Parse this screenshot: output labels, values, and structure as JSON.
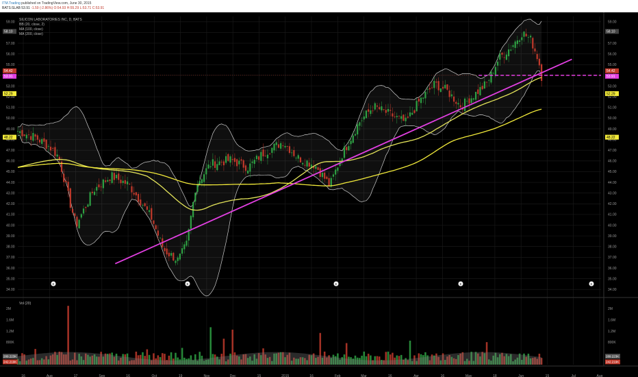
{
  "header": {
    "publisher": "ITM.Trading",
    "published_text": "published on TradingView.com, June 30, 2015",
    "symbol": "BATS:SLAB",
    "last": "53.91",
    "change": "-1.59 (-2.86%)",
    "open": "O:54.93",
    "high": "H:55.29",
    "low": "L:53.71",
    "close": "C:53.91"
  },
  "legend": {
    "title": "SILICON LABORATORIES INC, D, BATS",
    "bb": "BB (20, close, 2)",
    "ma100": "MA (100, close)",
    "ma200": "MA (200, close)",
    "vol": "Vol (20)"
  },
  "colors": {
    "up": "#2ea043",
    "down": "#c0392b",
    "trendline": "#e23fe2",
    "ma100": "#e4e45a",
    "ma200": "#f2ea3a",
    "bb": "#cfcfcf",
    "bg": "#000000",
    "grid": "#1c1c1c"
  },
  "chart_data": {
    "type": "candlestick",
    "price_axis": {
      "ticks": [
        "34.00",
        "35.00",
        "36.00",
        "37.00",
        "38.00",
        "39.00",
        "40.00",
        "41.00",
        "42.00",
        "43.00",
        "44.00",
        "45.00",
        "46.00",
        "47.00",
        "48.00",
        "49.00",
        "50.00",
        "51.00",
        "52.00",
        "53.00",
        "54.00",
        "55.00",
        "56.00",
        "57.00",
        "58.00",
        "59.00"
      ],
      "range": [
        33.5,
        59.5
      ]
    },
    "price_labels": {
      "top": "58.10",
      "last_price": "53.91",
      "resistance": "54.42",
      "ma100": "52.29",
      "ma200": "48.22"
    },
    "volume_axis": {
      "ticks": [
        "800K",
        "1.2M",
        "1.6M",
        "2M"
      ],
      "range": [
        0,
        2.3
      ],
      "labels": {
        "vol_avg": "289.223K",
        "vol_last": "242.219K"
      }
    },
    "time_axis": [
      "16",
      "Aug",
      "17",
      "Sep",
      "16",
      "Oct",
      "19",
      "Nov",
      "Dec",
      "15",
      "2015",
      "16",
      "Feb",
      "Mar",
      "16",
      "Apr",
      "16",
      "May",
      "18",
      "Jun",
      "15",
      "Jul",
      "Aug"
    ],
    "events": [
      "E",
      "E",
      "E",
      "E",
      "E"
    ],
    "support_level": 54.0,
    "trendline": {
      "from": [
        0.167,
        36.4
      ],
      "to": [
        0.95,
        55.5
      ]
    },
    "anchors": [
      [
        0.0,
        48.8
      ],
      [
        0.03,
        48.2
      ],
      [
        0.055,
        47.3
      ],
      [
        0.07,
        46.4
      ],
      [
        0.09,
        42.0
      ],
      [
        0.1,
        40.0
      ],
      [
        0.13,
        43.3
      ],
      [
        0.16,
        44.6
      ],
      [
        0.19,
        43.8
      ],
      [
        0.21,
        42.3
      ],
      [
        0.23,
        40.6
      ],
      [
        0.25,
        37.7
      ],
      [
        0.275,
        36.7
      ],
      [
        0.29,
        38.3
      ],
      [
        0.305,
        43.7
      ],
      [
        0.33,
        45.7
      ],
      [
        0.365,
        46.1
      ],
      [
        0.395,
        45.4
      ],
      [
        0.42,
        46.7
      ],
      [
        0.455,
        47.8
      ],
      [
        0.48,
        46.3
      ],
      [
        0.51,
        45.6
      ],
      [
        0.535,
        43.7
      ],
      [
        0.555,
        46.5
      ],
      [
        0.585,
        49.6
      ],
      [
        0.61,
        51.1
      ],
      [
        0.64,
        50.3
      ],
      [
        0.665,
        49.6
      ],
      [
        0.69,
        51.7
      ],
      [
        0.715,
        53.2
      ],
      [
        0.735,
        52.6
      ],
      [
        0.76,
        51.1
      ],
      [
        0.785,
        52.3
      ],
      [
        0.805,
        53.3
      ],
      [
        0.825,
        55.6
      ],
      [
        0.845,
        56.6
      ],
      [
        0.865,
        58.0
      ],
      [
        0.88,
        57.3
      ],
      [
        0.893,
        55.4
      ],
      [
        0.898,
        53.9
      ]
    ]
  }
}
